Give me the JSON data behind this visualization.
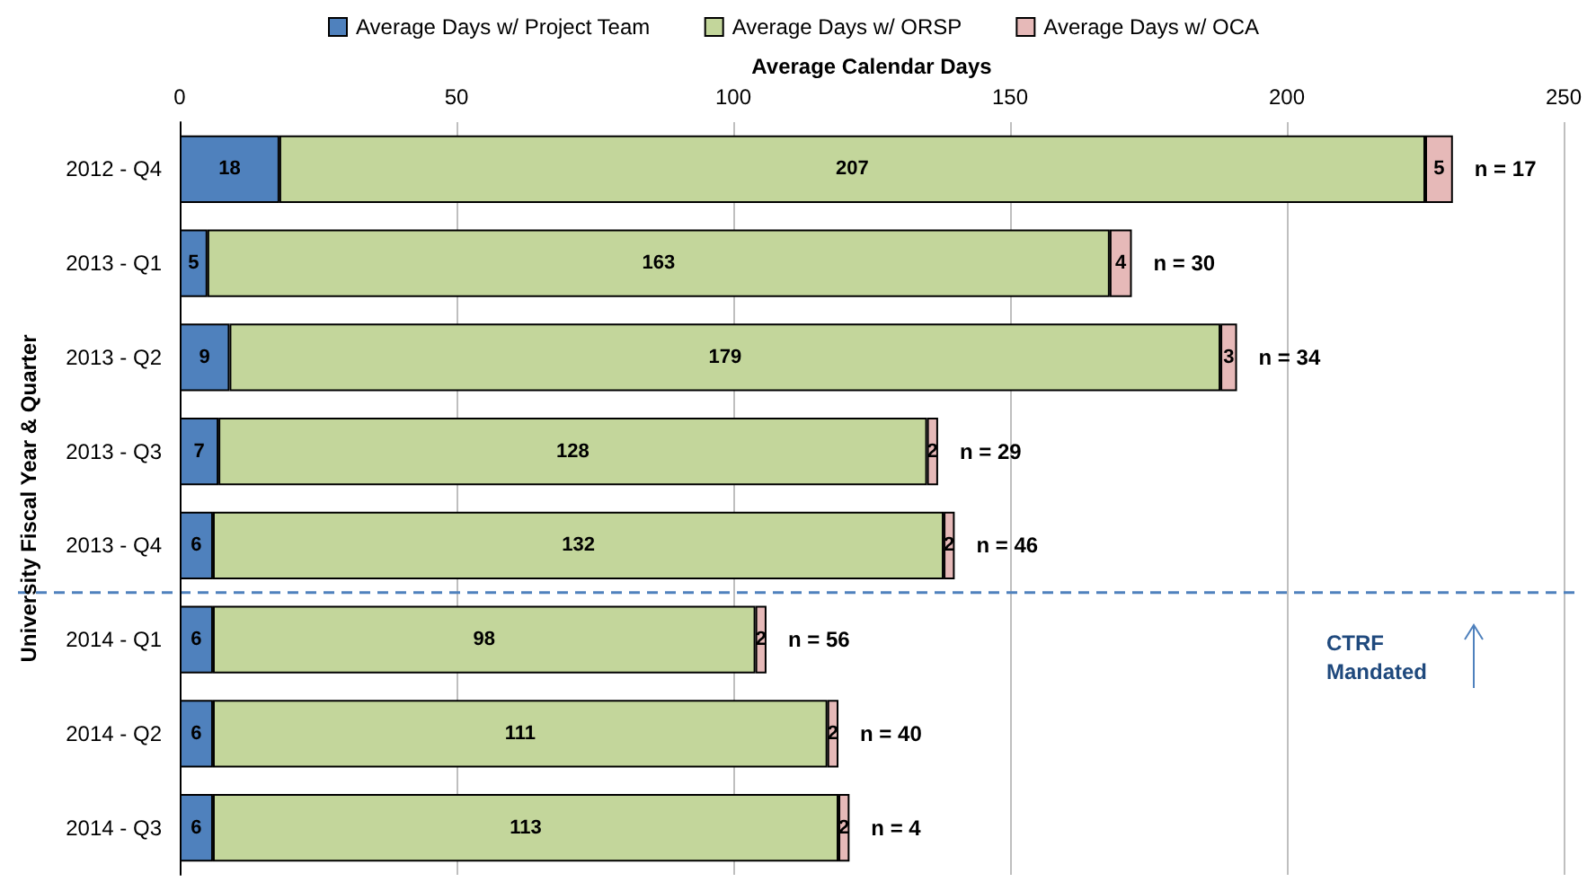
{
  "chart_data": {
    "type": "bar",
    "orientation": "horizontal",
    "stacked": true,
    "xlabel": "Average Calendar Days",
    "ylabel": "University Fiscal Year & Quarter",
    "categories": [
      "2012 - Q4",
      "2013 - Q1",
      "2013 - Q2",
      "2013 - Q3",
      "2013 - Q4",
      "2014 - Q1",
      "2014 - Q2",
      "2014 - Q3"
    ],
    "series": [
      {
        "name": "Average Days w/ Project Team",
        "color": "#4f81bd",
        "values": [
          18,
          5,
          9,
          7,
          6,
          6,
          6,
          6
        ]
      },
      {
        "name": "Average Days w/ ORSP",
        "color": "#c3d69b",
        "values": [
          207,
          163,
          179,
          128,
          132,
          98,
          111,
          113
        ]
      },
      {
        "name": "Average Days w/ OCA",
        "color": "#e6b9b8",
        "values": [
          5,
          4,
          3,
          2,
          2,
          2,
          2,
          2
        ]
      }
    ],
    "annotations": [
      {
        "text": "n = 17",
        "x": 230,
        "y": "2012 - Q4"
      },
      {
        "text": "n = 30",
        "x": 172,
        "y": "2013 - Q1"
      },
      {
        "text": "n = 34",
        "x": 191,
        "y": "2013 - Q2"
      },
      {
        "text": "n = 29",
        "x": 137,
        "y": "2013 - Q3"
      },
      {
        "text": "n = 46",
        "x": 140,
        "y": "2013 - Q4"
      },
      {
        "text": "n = 56",
        "x": 106,
        "y": "2014 - Q1"
      },
      {
        "text": "n = 40",
        "x": 119,
        "y": "2014 - Q2"
      },
      {
        "text": "n = 4",
        "x": 121,
        "y": "2014 - Q3"
      }
    ],
    "xlim": [
      0,
      250
    ],
    "xticks": [
      0,
      50,
      100,
      150,
      200,
      250
    ],
    "grid": "x",
    "legend": "top",
    "data_labels": true,
    "ref_lines": [
      {
        "axis": "y",
        "value": "2014 - Q1",
        "label": "CTRF Mandated",
        "color": "#4f81bd",
        "line_style": "dashed"
      }
    ]
  }
}
